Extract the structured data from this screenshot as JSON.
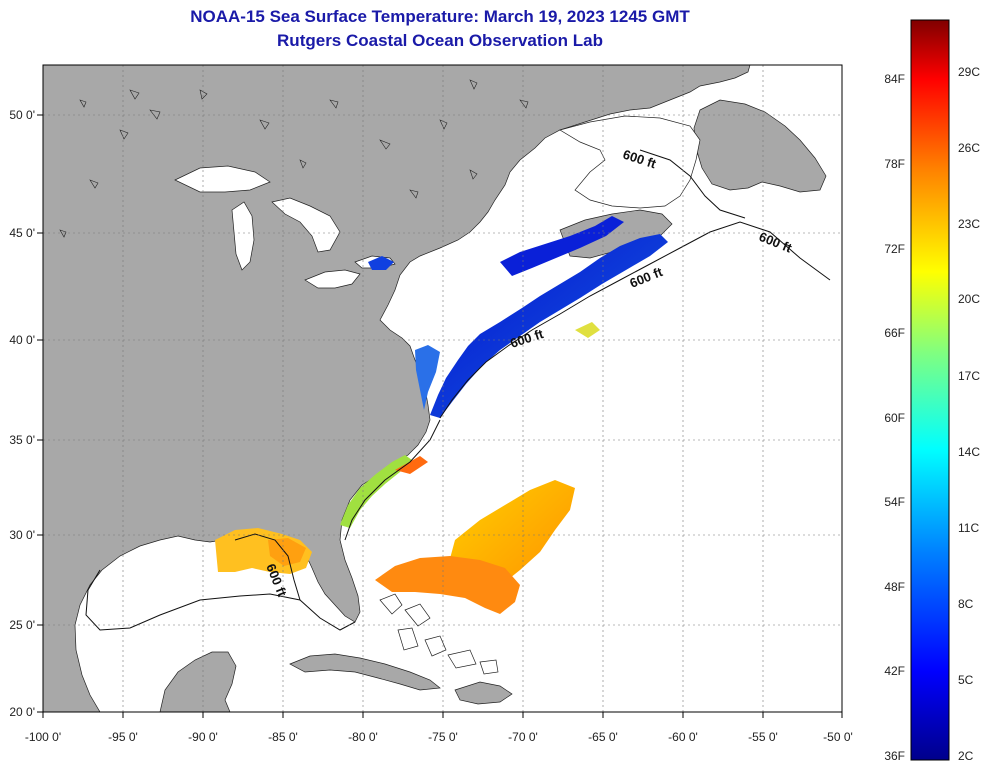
{
  "title": {
    "line1": "NOAA-15 Sea Surface Temperature:  March 19, 2023 1245 GMT",
    "line2": "Rutgers Coastal Ocean Observation Lab"
  },
  "map": {
    "lon_labels": [
      "-100 0'",
      "-95 0'",
      "-90 0'",
      "-85 0'",
      "-80 0'",
      "-75 0'",
      "-70 0'",
      "-65 0'",
      "-60 0'",
      "-55 0'",
      "-50 0'"
    ],
    "lat_labels": [
      "50 0'",
      "45 0'",
      "40 0'",
      "35 0'",
      "30 0'",
      "25 0'",
      "20 0'"
    ],
    "isobath_labels": [
      "600 ft",
      "600 ft",
      "600 ft",
      "600 ft",
      "600 ft"
    ],
    "colors": {
      "land": "#a8a8a8",
      "ocean": "#ffffff",
      "border": "#000000",
      "grid": "#777777"
    }
  },
  "colorbar": {
    "fahrenheit_labels": [
      "84F",
      "78F",
      "72F",
      "66F",
      "60F",
      "54F",
      "48F",
      "42F",
      "36F"
    ],
    "celsius_labels": [
      "29C",
      "26C",
      "23C",
      "20C",
      "17C",
      "14C",
      "11C",
      "8C",
      "5C",
      "2C"
    ],
    "colors": [
      "#00008b",
      "#0000ff",
      "#0080ff",
      "#00ffff",
      "#80ff80",
      "#ffff00",
      "#ff8000",
      "#ff0000",
      "#800000"
    ]
  }
}
